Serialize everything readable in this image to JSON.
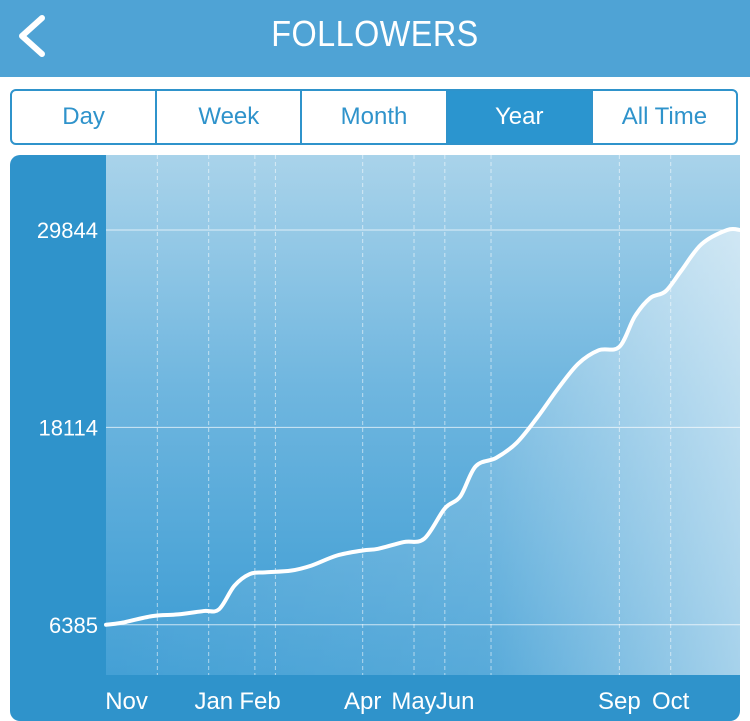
{
  "header": {
    "title": "FOLLOWERS",
    "back_icon": "chevron-left-icon"
  },
  "tabs": [
    {
      "label": "Day",
      "active": false
    },
    {
      "label": "Week",
      "active": false
    },
    {
      "label": "Month",
      "active": false
    },
    {
      "label": "Year",
      "active": true
    },
    {
      "label": "All Time",
      "active": false
    }
  ],
  "colors": {
    "header": "#4fa3d5",
    "accent": "#2b95cf",
    "line": "#ffffff"
  },
  "chart_data": {
    "type": "area",
    "title": "",
    "xlabel": "",
    "ylabel": "",
    "grid": true,
    "yticks": [
      6385,
      18114,
      29844
    ],
    "ylim": [
      3400,
      34300
    ],
    "xlim": [
      0,
      12.35
    ],
    "xtick_labels": [
      {
        "label": "Nov",
        "x": 0.4
      },
      {
        "label": "Jan",
        "x": 2.1
      },
      {
        "label": "Feb",
        "x": 3.0
      },
      {
        "label": "Apr",
        "x": 5.0
      },
      {
        "label": "May",
        "x": 6.0
      },
      {
        "label": "Jun",
        "x": 6.8
      },
      {
        "label": "Sep",
        "x": 10.0
      },
      {
        "label": "Oct",
        "x": 11.0
      }
    ],
    "vlines": [
      1.0,
      2.0,
      2.9,
      3.3,
      5.0,
      6.0,
      6.6,
      7.5,
      10.0,
      11.0
    ],
    "series": [
      {
        "x": [
          0,
          0.3,
          0.9,
          1.4,
          1.9,
          2.2,
          2.5,
          2.8,
          3.1,
          3.6,
          4.0,
          4.5,
          5.0,
          5.3,
          5.8,
          6.2,
          6.6,
          6.9,
          7.2,
          7.6,
          8.0,
          8.4,
          8.8,
          9.2,
          9.6,
          10.0,
          10.3,
          10.6,
          10.9,
          11.2,
          11.6,
          12.1,
          12.35
        ],
        "y": [
          6385,
          6500,
          6900,
          7000,
          7200,
          7300,
          8700,
          9400,
          9500,
          9600,
          9900,
          10500,
          10800,
          10900,
          11300,
          11500,
          13300,
          14000,
          15800,
          16300,
          17200,
          18700,
          20400,
          21900,
          22700,
          22900,
          24700,
          25800,
          26200,
          27400,
          29000,
          29844,
          29844
        ]
      }
    ]
  }
}
